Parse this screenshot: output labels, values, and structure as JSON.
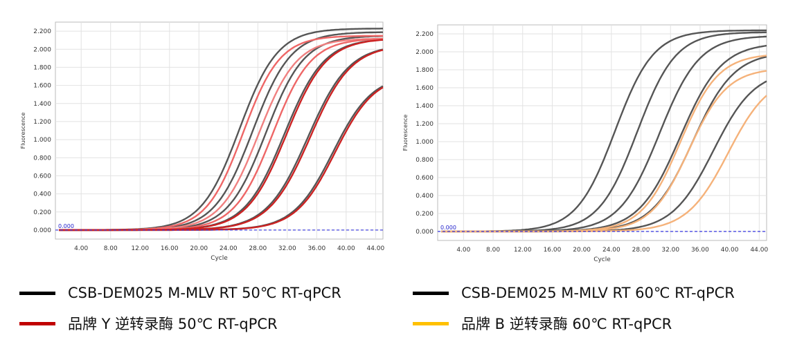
{
  "chart_data": [
    {
      "type": "line",
      "xlabel": "Cycle",
      "ylabel": "Fluorescence",
      "xlim": [
        0.5,
        45
      ],
      "ylim": [
        -0.1,
        2.3
      ],
      "x_ticks": [
        "4.00",
        "8.00",
        "12.00",
        "16.00",
        "20.00",
        "24.00",
        "28.00",
        "32.00",
        "36.00",
        "40.00",
        "44.00"
      ],
      "y_ticks": [
        "0.000",
        "0.200",
        "0.400",
        "0.600",
        "0.800",
        "1.000",
        "1.200",
        "1.400",
        "1.600",
        "1.800",
        "2.000",
        "2.200"
      ],
      "threshold": {
        "value": 0.0,
        "label": "0.000",
        "color": "#3333dd"
      },
      "grid": true,
      "series": [
        {
          "group": "CSB-DEM025 M-MLV RT 50℃  RT-qPCR",
          "color": "#555555",
          "midpoint": 25.5,
          "plateau": 2.23,
          "slope": 2.6
        },
        {
          "group": "CSB-DEM025 M-MLV RT 50℃  RT-qPCR",
          "color": "#555555",
          "midpoint": 27.3,
          "plateau": 2.19,
          "slope": 2.6
        },
        {
          "group": "CSB-DEM025 M-MLV RT 50℃  RT-qPCR",
          "color": "#555555",
          "midpoint": 29.1,
          "plateau": 2.15,
          "slope": 2.6
        },
        {
          "group": "CSB-DEM025 M-MLV RT 50℃  RT-qPCR",
          "color": "#555555",
          "midpoint": 31.6,
          "plateau": 2.12,
          "slope": 2.7
        },
        {
          "group": "CSB-DEM025 M-MLV RT 50℃  RT-qPCR",
          "color": "#555555",
          "midpoint": 34.8,
          "plateau": 2.05,
          "slope": 2.8
        },
        {
          "group": "CSB-DEM025 M-MLV RT 50℃  RT-qPCR",
          "color": "#555555",
          "midpoint": 38.2,
          "plateau": 1.72,
          "slope": 2.7
        },
        {
          "group": "品牌 Y 逆转录酶 50℃  RT-qPCR",
          "color": "#ee6666",
          "midpoint": 26.0,
          "plateau": 2.15,
          "slope": 2.5
        },
        {
          "group": "品牌 Y 逆转录酶 50℃  RT-qPCR",
          "color": "#f08080",
          "midpoint": 28.1,
          "plateau": 2.12,
          "slope": 2.6
        },
        {
          "group": "品牌 Y 逆转录酶 50℃  RT-qPCR",
          "color": "#ee6666",
          "midpoint": 30.0,
          "plateau": 2.12,
          "slope": 2.6
        },
        {
          "group": "品牌 Y 逆转录酶 50℃  RT-qPCR",
          "color": "#cc2222",
          "midpoint": 31.9,
          "plateau": 2.12,
          "slope": 2.7
        },
        {
          "group": "品牌 Y 逆转录酶 50℃  RT-qPCR",
          "color": "#cc2222",
          "midpoint": 35.1,
          "plateau": 2.05,
          "slope": 2.8
        },
        {
          "group": "品牌 Y 逆转录酶 50℃  RT-qPCR",
          "color": "#cc2222",
          "midpoint": 38.5,
          "plateau": 1.72,
          "slope": 2.7
        }
      ]
    },
    {
      "type": "line",
      "xlabel": "Cycle",
      "ylabel": "Fluorescence",
      "xlim": [
        0.5,
        45
      ],
      "ylim": [
        -0.1,
        2.3
      ],
      "x_ticks": [
        "4.00",
        "8.00",
        "12.00",
        "16.00",
        "20.00",
        "24.00",
        "28.00",
        "32.00",
        "36.00",
        "40.00",
        "44.00"
      ],
      "y_ticks": [
        "0.000",
        "0.200",
        "0.400",
        "0.600",
        "0.800",
        "1.000",
        "1.200",
        "1.400",
        "1.600",
        "1.800",
        "2.000",
        "2.200"
      ],
      "threshold": {
        "value": 0.0,
        "label": "0.000",
        "color": "#3333dd"
      },
      "grid": true,
      "series": [
        {
          "group": "CSB-DEM025 M-MLV RT 60℃  RT-qPCR",
          "color": "#555555",
          "midpoint": 24.5,
          "plateau": 2.24,
          "slope": 2.6
        },
        {
          "group": "CSB-DEM025 M-MLV RT 60℃  RT-qPCR",
          "color": "#555555",
          "midpoint": 27.5,
          "plateau": 2.22,
          "slope": 2.6
        },
        {
          "group": "CSB-DEM025 M-MLV RT 60℃  RT-qPCR",
          "color": "#555555",
          "midpoint": 30.5,
          "plateau": 2.18,
          "slope": 2.7
        },
        {
          "group": "CSB-DEM025 M-MLV RT 60℃  RT-qPCR",
          "color": "#555555",
          "midpoint": 33.3,
          "plateau": 2.1,
          "slope": 2.8
        },
        {
          "group": "CSB-DEM025 M-MLV RT 60℃  RT-qPCR",
          "color": "#555555",
          "midpoint": 35.0,
          "plateau": 2.0,
          "slope": 2.8
        },
        {
          "group": "CSB-DEM025 M-MLV RT 60℃  RT-qPCR",
          "color": "#555555",
          "midpoint": 37.8,
          "plateau": 1.8,
          "slope": 2.8
        },
        {
          "group": "品牌 B 逆转录酶 60℃  RT-qPCR",
          "color": "#f5b27a",
          "midpoint": 33.3,
          "plateau": 1.98,
          "slope": 2.6
        },
        {
          "group": "品牌 B 逆转录酶 60℃  RT-qPCR",
          "color": "#f5b27a",
          "midpoint": 34.5,
          "plateau": 1.82,
          "slope": 2.6
        },
        {
          "group": "品牌 B 逆转录酶 60℃  RT-qPCR",
          "color": "#f5b27a",
          "midpoint": 39.8,
          "plateau": 1.75,
          "slope": 2.8
        }
      ]
    }
  ],
  "legend": [
    {
      "label": "CSB-DEM025 M-MLV RT 50℃  RT-qPCR",
      "color": "#000000"
    },
    {
      "label": "品牌 Y 逆转录酶 50℃  RT-qPCR",
      "color": "#c00000"
    },
    {
      "label": "CSB-DEM025 M-MLV RT 60℃  RT-qPCR",
      "color": "#000000"
    },
    {
      "label": "品牌 B 逆转录酶 60℃  RT-qPCR",
      "color": "#ffc000"
    }
  ]
}
